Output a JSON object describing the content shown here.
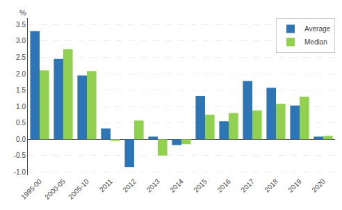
{
  "chart_data": {
    "type": "bar",
    "ylabel": "%",
    "categories": [
      "1995-00",
      "2000-05",
      "2005-10",
      "2011",
      "2012",
      "2013",
      "2014",
      "2015",
      "2016",
      "2017",
      "2018",
      "2019",
      "2020"
    ],
    "series": [
      {
        "name": "Average",
        "color": "#2E75B6",
        "values": [
          3.3,
          2.45,
          1.95,
          0.33,
          -0.85,
          0.08,
          -0.18,
          1.32,
          0.55,
          1.78,
          1.57,
          1.03,
          0.08
        ]
      },
      {
        "name": "Median",
        "color": "#92D050",
        "values": [
          2.1,
          2.75,
          2.08,
          -0.05,
          0.57,
          -0.5,
          -0.15,
          0.75,
          0.8,
          0.88,
          1.08,
          1.3,
          0.1
        ]
      }
    ],
    "ylim": [
      -1.1,
      3.7
    ],
    "yticks": [
      {
        "value": -1,
        "label": "-1.0"
      },
      -0.5,
      {
        "value": 0,
        "label": "0.0"
      },
      0.5,
      {
        "value": 1,
        "label": "1.0"
      },
      1.5,
      {
        "value": 2,
        "label": "2.0"
      },
      2.5,
      {
        "value": 3,
        "label": "3.0"
      },
      3.5
    ],
    "grid": true,
    "legend": "upper right"
  }
}
